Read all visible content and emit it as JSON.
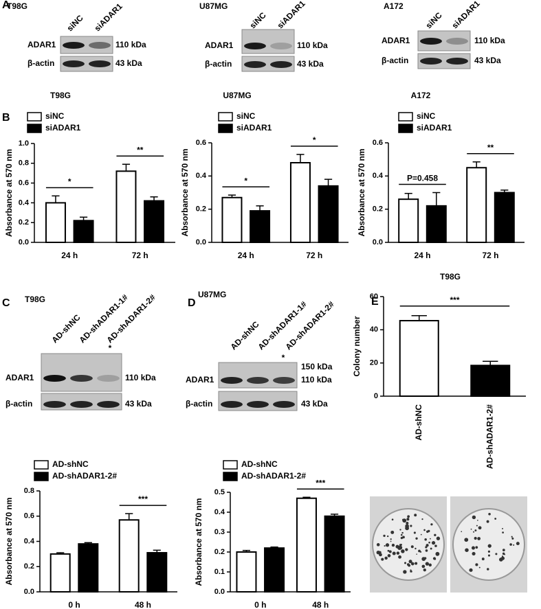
{
  "panel_labels": [
    "A",
    "B",
    "C",
    "D",
    "E"
  ],
  "blots": [
    {
      "cell": "T98G",
      "lanes": [
        "siNC",
        "siADAR1"
      ],
      "rows": [
        {
          "label": "ADAR1",
          "sizes": [
            "110 kDa"
          ]
        },
        {
          "label": "β-actin",
          "sizes": [
            "43 kDa"
          ]
        }
      ]
    },
    {
      "cell": "U87MG",
      "lanes": [
        "siNC",
        "siADAR1"
      ],
      "rows": [
        {
          "label": "ADAR1",
          "sizes": [
            "110 kDa"
          ]
        },
        {
          "label": "β-actin",
          "sizes": [
            "43 kDa"
          ]
        }
      ]
    },
    {
      "cell": "A172",
      "lanes": [
        "siNC",
        "siADAR1"
      ],
      "rows": [
        {
          "label": "ADAR1",
          "sizes": [
            "110 kDa"
          ]
        },
        {
          "label": "β-actin",
          "sizes": [
            "43 kDa"
          ]
        }
      ]
    },
    {
      "cell": "T98G",
      "lanes": [
        "AD-shNC",
        "AD-shADAR1-1#",
        "AD-shADAR1-2#"
      ],
      "mark": "*",
      "rows": [
        {
          "label": "ADAR1",
          "sizes": [
            "110 kDa"
          ]
        },
        {
          "label": "β-actin",
          "sizes": [
            "43 kDa"
          ]
        }
      ]
    },
    {
      "cell": "U87MG",
      "lanes": [
        "AD-shNC",
        "AD-shADAR1-1#",
        "AD-shADAR1-2#"
      ],
      "mark": "*",
      "rows": [
        {
          "label": "ADAR1",
          "sizes": [
            "150 kDa",
            "110 kDa"
          ]
        },
        {
          "label": "β-actin",
          "sizes": [
            "43 kDa"
          ]
        }
      ]
    }
  ],
  "chart_data": [
    {
      "type": "bar",
      "title": "T98G",
      "y_label": "Absorbance at 570 nm",
      "categories": [
        "24 h",
        "72 h"
      ],
      "series": [
        {
          "name": "siNC",
          "color": "#ffffff",
          "values": [
            0.4,
            0.72
          ],
          "errors": [
            0.07,
            0.07
          ]
        },
        {
          "name": "siADAR1",
          "color": "#000000",
          "values": [
            0.22,
            0.42
          ],
          "errors": [
            0.035,
            0.04
          ]
        }
      ],
      "annotations": [
        "*",
        "**"
      ],
      "ylim": [
        0,
        1
      ],
      "yticks": [
        {
          "value": 0,
          "label": "0.0"
        },
        0.2,
        0.4,
        0.6,
        0.8,
        {
          "value": 1,
          "label": "1.0"
        }
      ]
    },
    {
      "type": "bar",
      "title": "U87MG",
      "y_label": "Absorbance at 570 nm",
      "categories": [
        "24 h",
        "72 h"
      ],
      "series": [
        {
          "name": "siNC",
          "color": "#ffffff",
          "values": [
            0.27,
            0.48
          ],
          "errors": [
            0.015,
            0.05
          ]
        },
        {
          "name": "siADAR1",
          "color": "#000000",
          "values": [
            0.19,
            0.34
          ],
          "errors": [
            0.03,
            0.04
          ]
        }
      ],
      "annotations": [
        "*",
        "*"
      ],
      "ylim": [
        0,
        0.6
      ],
      "yticks": [
        {
          "value": 0,
          "label": "0.0"
        },
        0.2,
        0.4,
        0.6
      ]
    },
    {
      "type": "bar",
      "title": "A172",
      "y_label": "Absorbance at 570 nm",
      "categories": [
        "24 h",
        "72 h"
      ],
      "series": [
        {
          "name": "siNC",
          "color": "#ffffff",
          "values": [
            0.26,
            0.45
          ],
          "errors": [
            0.035,
            0.035
          ]
        },
        {
          "name": "siADAR1",
          "color": "#000000",
          "values": [
            0.22,
            0.3
          ],
          "errors": [
            0.08,
            0.015
          ]
        }
      ],
      "annotations": [
        "P=0.458",
        "**"
      ],
      "ylim": [
        0,
        0.6
      ],
      "yticks": [
        {
          "value": 0,
          "label": "0.0"
        },
        0.2,
        0.4,
        0.6
      ]
    },
    {
      "type": "bar",
      "title": "T98G",
      "y_label": "Colony number",
      "categories": [
        "AD-shNC",
        "AD-shADAR1-2#"
      ],
      "values": [
        45.5,
        18.5
      ],
      "errors": [
        3,
        2.5
      ],
      "colors": [
        "#ffffff",
        "#000000"
      ],
      "annotation": "***",
      "ylim": [
        0,
        60
      ],
      "yticks": [
        0,
        20,
        40,
        60
      ]
    },
    {
      "type": "bar",
      "y_label": "Absorbance at 570 nm",
      "categories": [
        "0 h",
        "48 h"
      ],
      "series": [
        {
          "name": "AD-shNC",
          "color": "#ffffff",
          "values": [
            0.3,
            0.57
          ],
          "errors": [
            0.01,
            0.05
          ]
        },
        {
          "name": "AD-shADAR1-2#",
          "color": "#000000",
          "values": [
            0.38,
            0.31
          ],
          "errors": [
            0.01,
            0.02
          ]
        }
      ],
      "annotations": [
        null,
        "***"
      ],
      "ylim": [
        0,
        0.8
      ],
      "yticks": [
        {
          "value": 0,
          "label": "0.0"
        },
        0.2,
        0.4,
        0.6,
        0.8
      ]
    },
    {
      "type": "bar",
      "y_label": "Absorbance at 570 nm",
      "categories": [
        "0 h",
        "48 h"
      ],
      "series": [
        {
          "name": "AD-shNC",
          "color": "#ffffff",
          "values": [
            0.2,
            0.47
          ],
          "errors": [
            0.008,
            0.005
          ]
        },
        {
          "name": "AD-shADAR1-2#",
          "color": "#000000",
          "values": [
            0.22,
            0.38
          ],
          "errors": [
            0.005,
            0.01
          ]
        }
      ],
      "annotations": [
        null,
        "***"
      ],
      "ylim": [
        0,
        0.5
      ],
      "yticks": [
        {
          "value": 0,
          "label": "0.0"
        },
        0.1,
        0.2,
        0.3,
        0.4,
        0.5
      ]
    }
  ]
}
